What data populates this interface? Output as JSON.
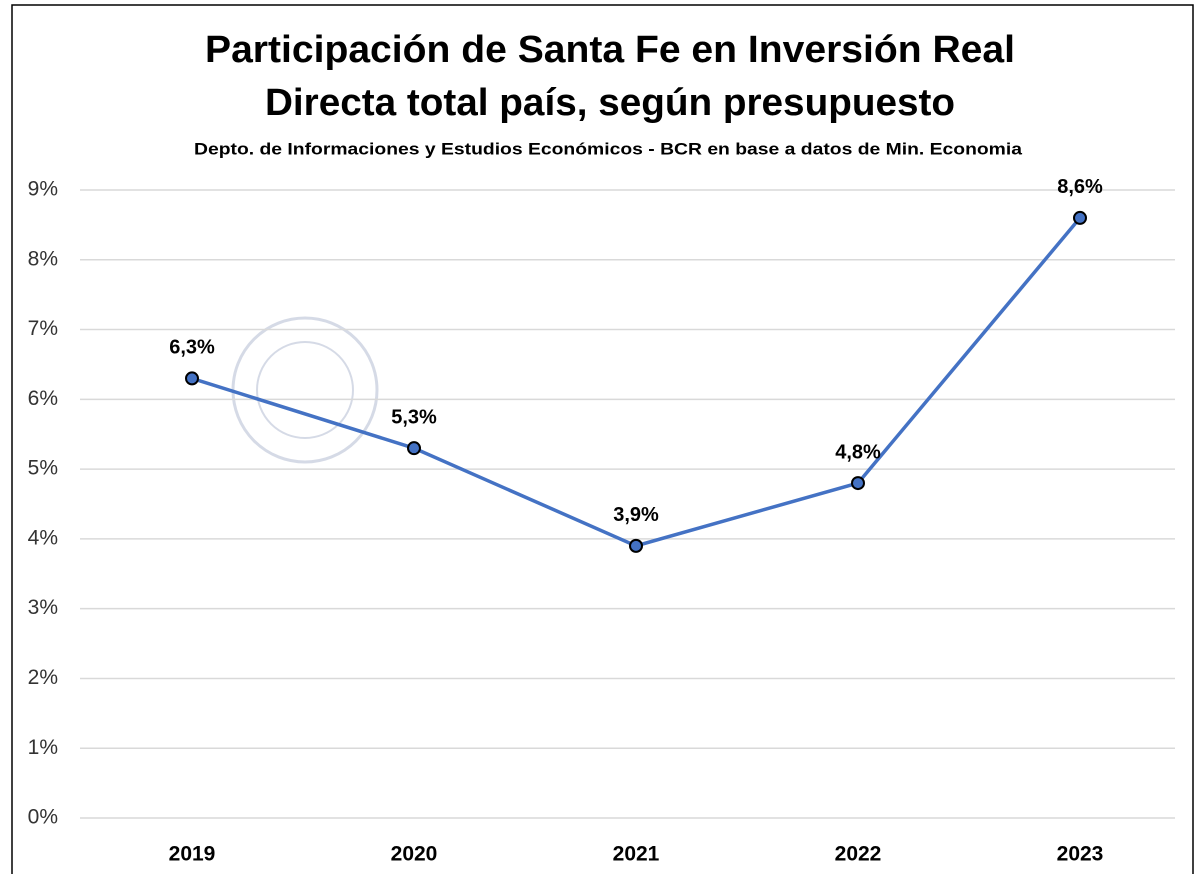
{
  "chart_data": {
    "type": "line",
    "title": [
      "Participación de Santa Fe en Inversión Real",
      "Directa total país, según presupuesto"
    ],
    "subtitle": "Depto. de Informaciones y Estudios Económicos - BCR en base a datos de Min. Economia",
    "categories": [
      "2019",
      "2020",
      "2021",
      "2022",
      "2023"
    ],
    "series": [
      {
        "color": "#4472c4",
        "values": [
          6.3,
          5.3,
          3.9,
          4.8,
          8.6
        ],
        "value_labels": [
          "6,3%",
          "5,3%",
          "3,9%",
          "4,8%",
          "8,6%"
        ]
      }
    ],
    "ylim": [
      0,
      9
    ],
    "yticks": [
      {
        "value": 0,
        "label": "0%"
      },
      {
        "value": 1,
        "label": "1%"
      },
      {
        "value": 2,
        "label": "2%"
      },
      {
        "value": 3,
        "label": "3%"
      },
      {
        "value": 4,
        "label": "4%"
      },
      {
        "value": 5,
        "label": "5%"
      },
      {
        "value": 6,
        "label": "6%"
      },
      {
        "value": 7,
        "label": "7%"
      },
      {
        "value": 8,
        "label": "8%"
      },
      {
        "value": 9,
        "label": "9%"
      }
    ],
    "grid": true
  }
}
